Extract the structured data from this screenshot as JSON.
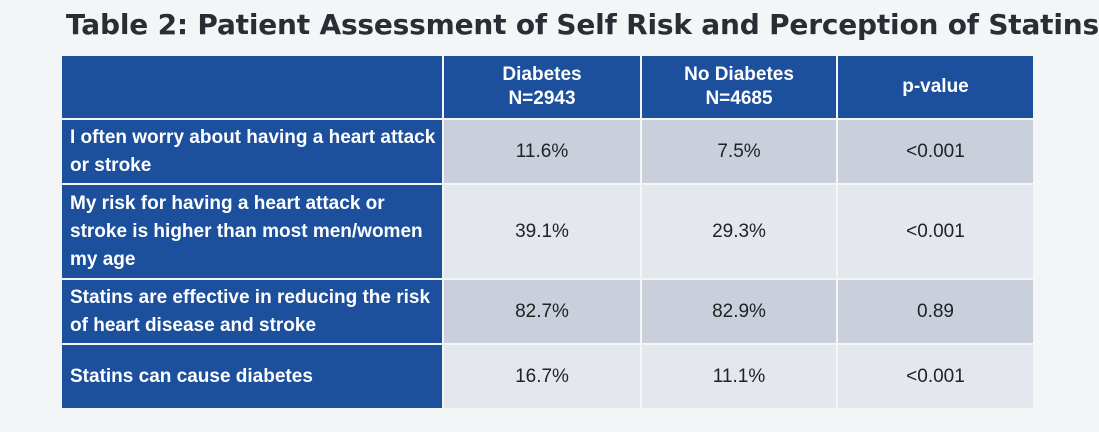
{
  "title": "Table 2: Patient Assessment of Self Risk and Perception of Statins",
  "header": {
    "diabetes_line1": "Diabetes",
    "diabetes_line2": "N=2943",
    "nodiabetes_line1": "No Diabetes",
    "nodiabetes_line2": "N=4685",
    "pvalue": "p-value"
  },
  "rows": [
    {
      "label": "I often worry about having a heart attack or stroke",
      "diabetes": "11.6%",
      "no_diabetes": "7.5%",
      "p_value": "<0.001"
    },
    {
      "label": "My risk for having a heart attack or stroke is higher than most men/women my age",
      "diabetes": "39.1%",
      "no_diabetes": "29.3%",
      "p_value": "<0.001"
    },
    {
      "label": "Statins are effective in reducing the risk of heart disease and stroke",
      "diabetes": "82.7%",
      "no_diabetes": "82.9%",
      "p_value": "0.89"
    },
    {
      "label": "Statins can cause diabetes",
      "diabetes": "16.7%",
      "no_diabetes": "11.1%",
      "p_value": "<0.001"
    }
  ]
}
